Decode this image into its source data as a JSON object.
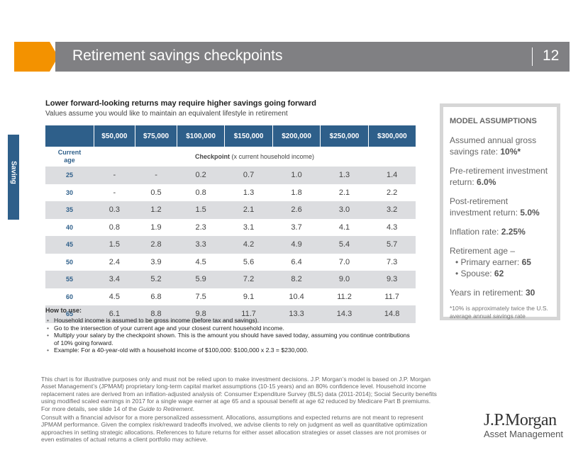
{
  "header": {
    "title": "Retirement savings checkpoints",
    "page_number": "12",
    "accent_color": "#f39200",
    "bar_color": "#808083"
  },
  "side_tab": {
    "label": "Saving",
    "color": "#2e5f8a"
  },
  "main": {
    "heading": "Lower forward-looking returns may require higher savings going forward",
    "subheading": "Values assume you would like to maintain an equivalent lifestyle in retirement"
  },
  "table": {
    "income_columns": [
      "$50,000",
      "$75,000",
      "$100,000",
      "$150,000",
      "$200,000",
      "$250,000",
      "$300,000"
    ],
    "age_header_line1": "Current",
    "age_header_line2": "age",
    "checkpoint_header_bold": "Checkpoint",
    "checkpoint_header_rest": " (x current household income)",
    "rows": [
      {
        "age": "25",
        "values": [
          "-",
          "-",
          "0.2",
          "0.7",
          "1.0",
          "1.3",
          "1.4"
        ]
      },
      {
        "age": "30",
        "values": [
          "-",
          "0.5",
          "0.8",
          "1.3",
          "1.8",
          "2.1",
          "2.2"
        ]
      },
      {
        "age": "35",
        "values": [
          "0.3",
          "1.2",
          "1.5",
          "2.1",
          "2.6",
          "3.0",
          "3.2"
        ]
      },
      {
        "age": "40",
        "values": [
          "0.8",
          "1.9",
          "2.3",
          "3.1",
          "3.7",
          "4.1",
          "4.3"
        ]
      },
      {
        "age": "45",
        "values": [
          "1.5",
          "2.8",
          "3.3",
          "4.2",
          "4.9",
          "5.4",
          "5.7"
        ]
      },
      {
        "age": "50",
        "values": [
          "2.4",
          "3.9",
          "4.5",
          "5.6",
          "6.4",
          "7.0",
          "7.3"
        ]
      },
      {
        "age": "55",
        "values": [
          "3.4",
          "5.2",
          "5.9",
          "7.2",
          "8.2",
          "9.0",
          "9.3"
        ]
      },
      {
        "age": "60",
        "values": [
          "4.5",
          "6.8",
          "7.5",
          "9.1",
          "10.4",
          "11.2",
          "11.7"
        ]
      },
      {
        "age": "65",
        "values": [
          "6.1",
          "8.8",
          "9.8",
          "11.7",
          "13.3",
          "14.3",
          "14.8"
        ]
      }
    ]
  },
  "how_to": {
    "heading": "How to use:",
    "items": [
      "Household income is assumed to be gross income (before tax and savings).",
      "Go to the intersection of your current age and your closest current household income.",
      "Multiply your salary by the checkpoint shown. This is the amount you should have saved today, assuming you continue contributions of 10% going forward.",
      "Example: For a 40-year-old with a household income of $100,000: $100,000 x 2.3 = $230,000."
    ]
  },
  "disclaimer": {
    "p1": "This chart is for illustrative purposes only and must not be relied upon to make investment decisions. J.P. Morgan’s model is based on J.P. Morgan Asset Management’s (JPMAM) proprietary long-term capital market assumptions (10-15 years) and an 80% confidence level. Household income replacement rates are derived from an inflation-adjusted analysis of: Consumer Expenditure Survey (BLS) data (2011-2014); Social Security benefits using modified scaled earnings in 2017 for a single wage earner at age 65 and a spousal benefit at age 62 reduced by Medicare Part B premiums. For more details, see slide 14 of the ",
    "p1_italic": "Guide to Retirement",
    "p1_end": ".",
    "p2": "Consult with a financial advisor for a more personalized assessment. Allocations, assumptions and expected returns are not meant to represent JPMAM performance. Given the complex risk/reward tradeoffs involved, we advise clients to rely on judgment as well as quantitative optimization approaches in setting strategic allocations. References to future returns for either asset allocation strategies or asset classes are not promises or even estimates of actual returns a client portfolio may achieve."
  },
  "assumptions": {
    "title": "MODEL ASSUMPTIONS",
    "savings_label": "Assumed annual gross savings rate: ",
    "savings_value": "10%*",
    "pre_label": "Pre-retirement investment return: ",
    "pre_value": "6.0%",
    "post_label": "Post-retirement investment return: ",
    "post_value": "5.0%",
    "inflation_label": "Inflation rate: ",
    "inflation_value": "2.25%",
    "ret_age_label": "Retirement age –",
    "primary_label": "Primary earner: ",
    "primary_value": "65",
    "spouse_label": "Spouse: ",
    "spouse_value": "62",
    "years_label": "Years in retirement: ",
    "years_value": "30",
    "footnote": "*10% is approximately twice the U.S. average annual savings rate"
  },
  "logo": {
    "line1": "J.P.Morgan",
    "line2": "Asset Management"
  }
}
